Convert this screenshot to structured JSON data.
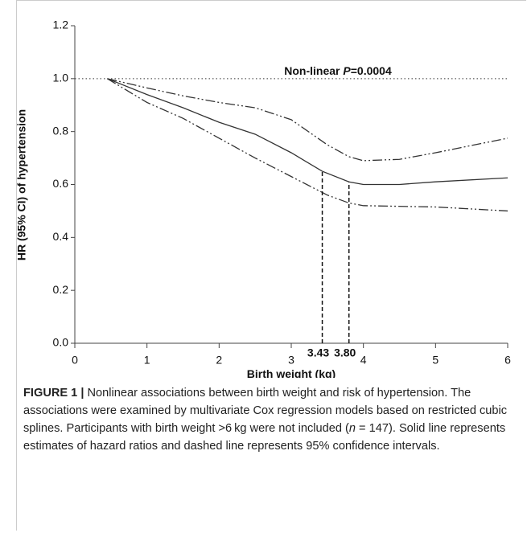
{
  "chart_data": {
    "type": "line",
    "x_label": "Birth weight (kg)",
    "y_label": "HR (95% CI) of hypertension",
    "annotation": [
      "Non-linear ",
      "P",
      "=0.0004"
    ],
    "xlim": [
      0,
      6
    ],
    "xticks": [
      0,
      1,
      2,
      3,
      4,
      5,
      6
    ],
    "ylim": [
      0,
      1.2
    ],
    "yticks": [
      {
        "value": 0,
        "label": "0.0"
      },
      {
        "value": 0.2,
        "label": "0.2"
      },
      {
        "value": 0.4,
        "label": "0.4"
      },
      {
        "value": 0.6,
        "label": "0.6"
      },
      {
        "value": 0.8,
        "label": "0.8"
      },
      {
        "value": 1.0,
        "label": "1.0"
      },
      {
        "value": 1.2,
        "label": "1.2"
      }
    ],
    "reference_line": 1.0,
    "vlines": [
      3.43,
      {
        "value": 3.8,
        "label": "3.80"
      }
    ],
    "series": [
      {
        "style": "solid",
        "color": "#333333",
        "x": [
          0.45,
          1,
          1.5,
          2,
          2.5,
          3,
          3.43,
          3.8,
          4,
          4.5,
          5,
          6
        ],
        "values": [
          1.0,
          0.94,
          0.89,
          0.835,
          0.79,
          0.72,
          0.65,
          0.61,
          0.6,
          0.6,
          0.61,
          0.625
        ]
      },
      {
        "style": "dashdot",
        "color": "#333333",
        "x": [
          0.45,
          1,
          1.5,
          2,
          2.5,
          3,
          3.5,
          3.8,
          4,
          4.5,
          5,
          6
        ],
        "values": [
          1.0,
          0.965,
          0.935,
          0.91,
          0.89,
          0.845,
          0.75,
          0.705,
          0.69,
          0.695,
          0.72,
          0.775
        ]
      },
      {
        "style": "dashdot",
        "color": "#333333",
        "x": [
          0.45,
          1,
          1.5,
          2,
          2.5,
          3,
          3.5,
          3.8,
          4,
          5,
          6
        ],
        "values": [
          1.0,
          0.91,
          0.85,
          0.775,
          0.7,
          0.63,
          0.56,
          0.53,
          0.52,
          0.515,
          0.5
        ]
      }
    ]
  },
  "caption": {
    "label": "FIGURE 1 |",
    "text": [
      " Nonlinear associations between birth weight and risk of hypertension. The associations were examined by multivariate Cox regression models based on restricted cubic splines. Participants with birth weight >6 kg were not included (",
      "n",
      " = 147). Solid line represents estimates of hazard ratios and dashed line represents 95% confidence intervals."
    ]
  }
}
